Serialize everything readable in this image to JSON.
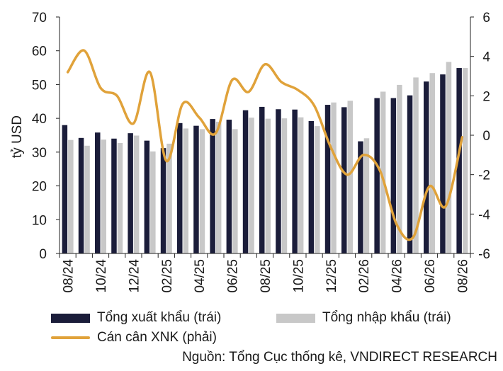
{
  "chart_data": {
    "type": "bar",
    "ylabel": "tỷ USD",
    "y_left": {
      "ticks": [
        0,
        10,
        20,
        30,
        40,
        50,
        60,
        70
      ],
      "range": [
        0,
        70
      ]
    },
    "y_right": {
      "ticks": [
        -6,
        -4,
        -2,
        0,
        2,
        4,
        6
      ],
      "range": [
        -6,
        6
      ]
    },
    "tick_labels": [
      "08/24",
      "10/24",
      "12/24",
      "02/25",
      "04/25",
      "06/25",
      "08/25",
      "10/25",
      "12/25",
      "02/26",
      "04/26",
      "06/26",
      "08/26"
    ],
    "categories": [
      "08/24",
      "09/24",
      "10/24",
      "11/24",
      "12/24",
      "01/25",
      "02/25",
      "03/25",
      "04/25",
      "05/25",
      "06/25",
      "07/25",
      "08/25",
      "09/25",
      "10/25",
      "11/25",
      "12/25",
      "01/26",
      "02/26",
      "03/26",
      "04/26",
      "05/26",
      "06/26",
      "07/26",
      "08/26"
    ],
    "series": [
      {
        "name": "Tổng xuất khẩu (trái)",
        "type": "bar",
        "axis": "left",
        "color": "#1b1d3a",
        "values": [
          38.0,
          34.2,
          35.8,
          34.0,
          35.6,
          33.4,
          31.2,
          38.6,
          37.8,
          39.8,
          39.6,
          42.4,
          43.4,
          42.7,
          42.6,
          39.2,
          44.0,
          43.3,
          33.2,
          46.0,
          46.0,
          46.8,
          50.9,
          53.0,
          54.9
        ]
      },
      {
        "name": "Tổng nhập khẩu (trái)",
        "type": "bar",
        "axis": "left",
        "color": "#c8c8c8",
        "values": [
          33.6,
          31.9,
          33.7,
          32.7,
          34.9,
          30.2,
          32.5,
          37.0,
          36.8,
          39.0,
          36.8,
          40.2,
          39.9,
          40.0,
          40.3,
          37.7,
          44.7,
          45.2,
          34.1,
          47.9,
          49.9,
          52.1,
          53.4,
          56.7,
          54.9
        ]
      },
      {
        "name": "Cán cân XNK (phải)",
        "type": "line",
        "axis": "right",
        "color": "#e0a23a",
        "values": [
          3.2,
          4.3,
          2.4,
          2.0,
          0.6,
          3.2,
          -1.3,
          1.6,
          0.9,
          0.1,
          2.8,
          2.2,
          3.6,
          2.7,
          2.3,
          1.5,
          -0.6,
          -2.0,
          -1.0,
          -1.8,
          -4.5,
          -5.2,
          -2.6,
          -3.6,
          -0.1
        ]
      }
    ]
  },
  "source": "Nguồn: Tổng Cục thống kê, VNDIRECT RESEARCH"
}
